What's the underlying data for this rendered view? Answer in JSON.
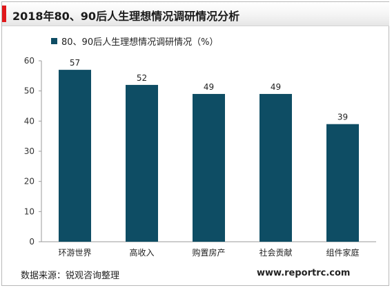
{
  "header": {
    "title": "2018年80、90后人生理想情况调研情况分析"
  },
  "colors": {
    "accent": "#e0181b",
    "bar": "#0e4d64"
  },
  "footer": {
    "source": "数据来源：锐观咨询整理",
    "url": "www.reportrc.com"
  },
  "chart_data": {
    "type": "bar",
    "categories": [
      "环游世界",
      "高收入",
      "购置房产",
      "社会贡献",
      "组件家庭"
    ],
    "series": [
      {
        "name": "80、90后人生理想情况调研情况（%）",
        "values": [
          57,
          52,
          49,
          49,
          39
        ]
      }
    ],
    "ylim": [
      0,
      60
    ],
    "yticks": [
      0,
      10,
      20,
      30,
      40,
      50,
      60
    ],
    "grid": false,
    "legend": "top-left",
    "data_labels": true
  }
}
